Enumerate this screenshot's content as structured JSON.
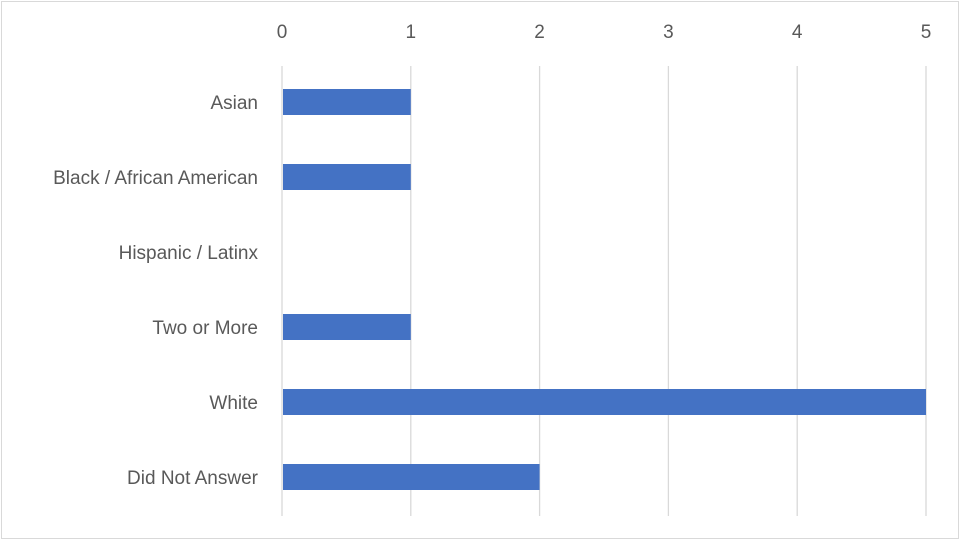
{
  "chart_data": {
    "type": "bar",
    "orientation": "horizontal",
    "categories": [
      "Asian",
      "Black / African American",
      "Hispanic / Latinx",
      "Two or More",
      "White",
      "Did Not Answer"
    ],
    "values": [
      1,
      1,
      0,
      1,
      5,
      2
    ],
    "x_ticks": [
      "0",
      "1",
      "2",
      "3",
      "4",
      "5"
    ],
    "xlim": [
      0,
      5
    ],
    "x_axis_position": "top",
    "grid": true,
    "legend": "none",
    "bar_color": "#4472c4",
    "grid_color": "#d9d9d9",
    "text_color": "#595959"
  }
}
